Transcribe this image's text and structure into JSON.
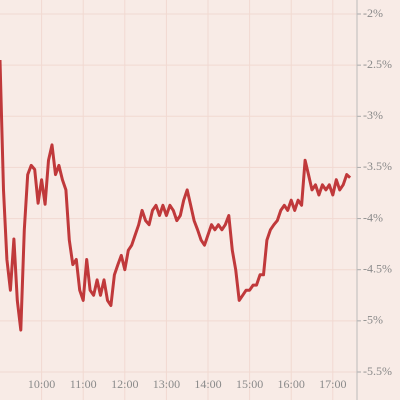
{
  "chart_data": {
    "type": "line",
    "x": [
      "09:00",
      "09:05",
      "09:10",
      "09:15",
      "09:20",
      "09:25",
      "09:30",
      "09:35",
      "09:40",
      "09:45",
      "09:50",
      "09:55",
      "10:00",
      "10:05",
      "10:10",
      "10:15",
      "10:20",
      "10:25",
      "10:30",
      "10:35",
      "10:40",
      "10:45",
      "10:50",
      "10:55",
      "11:00",
      "11:05",
      "11:10",
      "11:15",
      "11:20",
      "11:25",
      "11:30",
      "11:35",
      "11:40",
      "11:45",
      "11:50",
      "11:55",
      "12:00",
      "12:05",
      "12:10",
      "12:15",
      "12:20",
      "12:25",
      "12:30",
      "12:35",
      "12:40",
      "12:45",
      "12:50",
      "12:55",
      "13:00",
      "13:05",
      "13:10",
      "13:15",
      "13:20",
      "13:25",
      "13:30",
      "13:35",
      "13:40",
      "13:45",
      "13:50",
      "13:55",
      "14:00",
      "14:05",
      "14:10",
      "14:15",
      "14:20",
      "14:25",
      "14:30",
      "14:35",
      "14:40",
      "14:45",
      "14:50",
      "14:55",
      "15:00",
      "15:05",
      "15:10",
      "15:15",
      "15:20",
      "15:25",
      "15:30",
      "15:35",
      "15:40",
      "15:45",
      "15:50",
      "15:55",
      "16:00",
      "16:05",
      "16:10",
      "16:15",
      "16:20",
      "16:25",
      "16:30",
      "16:35",
      "16:40",
      "16:45",
      "16:50",
      "16:55",
      "17:00",
      "17:05",
      "17:10",
      "17:15",
      "17:20",
      "17:25"
    ],
    "series": [
      {
        "color": "#c0393b",
        "values": [
          -2.45,
          -3.72,
          -4.4,
          -4.7,
          -4.2,
          -4.8,
          -5.09,
          -4.11,
          -3.57,
          -3.48,
          -3.52,
          -3.85,
          -3.62,
          -3.86,
          -3.43,
          -3.28,
          -3.57,
          -3.48,
          -3.62,
          -3.72,
          -4.21,
          -4.45,
          -4.4,
          -4.7,
          -4.8,
          -4.4,
          -4.7,
          -4.75,
          -4.6,
          -4.75,
          -4.6,
          -4.8,
          -4.85,
          -4.55,
          -4.45,
          -4.36,
          -4.5,
          -4.31,
          -4.26,
          -4.16,
          -4.06,
          -3.92,
          -4.02,
          -4.06,
          -3.92,
          -3.87,
          -3.97,
          -3.87,
          -3.97,
          -3.87,
          -3.92,
          -4.02,
          -3.97,
          -3.82,
          -3.72,
          -3.87,
          -4.02,
          -4.11,
          -4.21,
          -4.26,
          -4.16,
          -4.06,
          -4.11,
          -4.06,
          -4.11,
          -4.06,
          -3.97,
          -4.31,
          -4.5,
          -4.8,
          -4.75,
          -4.7,
          -4.7,
          -4.65,
          -4.65,
          -4.55,
          -4.55,
          -4.21,
          -4.11,
          -4.06,
          -4.02,
          -3.92,
          -3.87,
          -3.92,
          -3.82,
          -3.92,
          -3.82,
          -3.87,
          -3.43,
          -3.57,
          -3.72,
          -3.67,
          -3.77,
          -3.67,
          -3.72,
          -3.67,
          -3.77,
          -3.62,
          -3.72,
          -3.67,
          -3.57,
          -3.6
        ]
      }
    ],
    "xlim": [
      "09:00",
      "17:32"
    ],
    "xticks": [
      "10:00",
      "11:00",
      "12:00",
      "13:00",
      "14:00",
      "15:00",
      "16:00",
      "17:00"
    ],
    "ylim": [
      -2,
      -5.5
    ],
    "yticks": [
      {
        "value": -2,
        "label": "-2%"
      },
      {
        "value": -2.5,
        "label": "-2.5%"
      },
      {
        "value": -3,
        "label": "-3%"
      },
      {
        "value": -3.5,
        "label": "-3.5%"
      },
      {
        "value": -4,
        "label": "-4%"
      },
      {
        "value": -4.5,
        "label": "-4.5%"
      },
      {
        "value": -5,
        "label": "-5%"
      },
      {
        "value": -5.5,
        "label": "-5.5%"
      }
    ],
    "grid": true
  }
}
